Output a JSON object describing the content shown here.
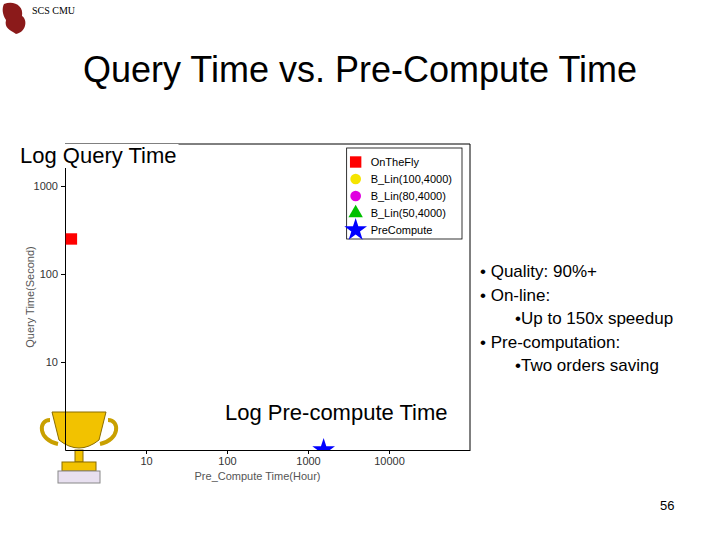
{
  "header": "SCS CMU",
  "page_number": "56",
  "chart_data": {
    "type": "scatter",
    "title": "Query Time vs. Pre-Compute Time",
    "x_label": "Pre_Compute Time(Hour)",
    "y_label": "Query Time(Second)",
    "log": true,
    "grid": false,
    "legend": "upper right",
    "xlim": [
      1,
      100000
    ],
    "ylim": [
      1,
      3000
    ],
    "xticks": [
      10,
      100,
      1000,
      10000
    ],
    "yticks": [
      10,
      100,
      1000
    ],
    "series": [
      {
        "name": "OnTheFly",
        "color": "#ff0000",
        "marker": "square",
        "x": [
          1.2
        ],
        "values": [
          250
        ]
      },
      {
        "name": "B_Lin(100,4000)",
        "color": "#f5e400",
        "marker": "circle",
        "x": [],
        "values": []
      },
      {
        "name": "B_Lin(80,4000)",
        "color": "#e000e0",
        "marker": "circle",
        "x": [],
        "values": []
      },
      {
        "name": "B_Lin(50,4000)",
        "color": "#00c000",
        "marker": "triangle",
        "x": [],
        "values": []
      },
      {
        "name": "PreCompute",
        "color": "#0000ff",
        "marker": "star",
        "x": [
          1560
        ],
        "values": [
          1
        ]
      }
    ],
    "annotations": [
      "Log Query Time",
      "Log Pre-compute Time"
    ],
    "bullets": [
      {
        "text": "• Quality: 90%+",
        "level": 1
      },
      {
        "text": "• On-line:",
        "level": 1
      },
      {
        "text": "•Up to 150x speedup",
        "level": 2
      },
      {
        "text": "• Pre-computation:",
        "level": 1
      },
      {
        "text": "•Two orders saving",
        "level": 2
      }
    ]
  }
}
